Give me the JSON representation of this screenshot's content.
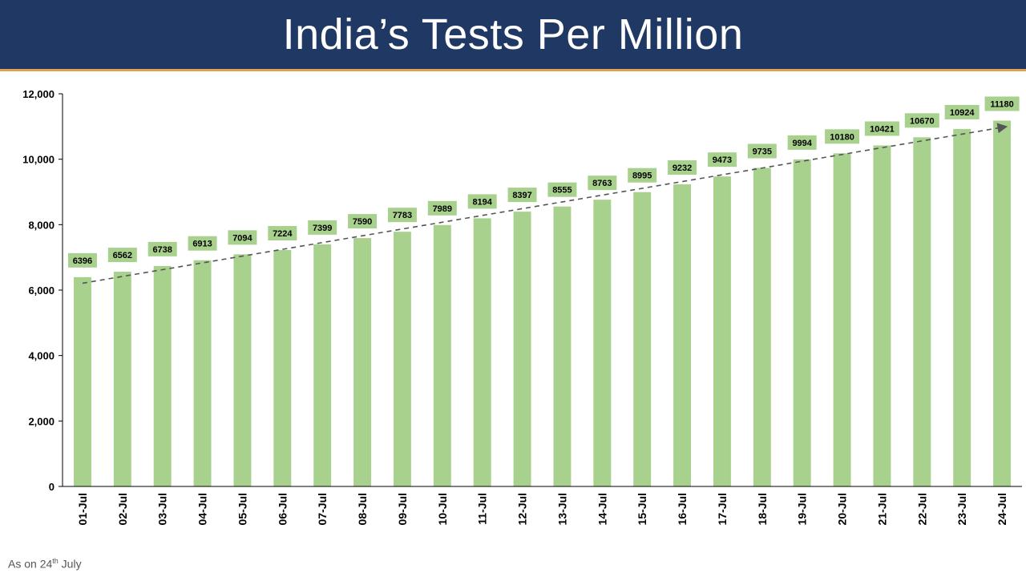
{
  "header": {
    "title": "India’s Tests Per Million"
  },
  "footnote": {
    "prefix": "As on 24",
    "sup": "th",
    "suffix": " July"
  },
  "colors": {
    "header_bg": "#1f3864",
    "bar": "#a9d18e",
    "label_bg": "#a9d18e",
    "trendline": "#555555"
  },
  "chart_data": {
    "type": "bar",
    "title": "India’s Tests Per Million",
    "xlabel": "",
    "ylabel": "",
    "categories": [
      "01-Jul",
      "02-Jul",
      "03-Jul",
      "04-Jul",
      "05-Jul",
      "06-Jul",
      "07-Jul",
      "08-Jul",
      "09-Jul",
      "10-Jul",
      "11-Jul",
      "12-Jul",
      "13-Jul",
      "14-Jul",
      "15-Jul",
      "16-Jul",
      "17-Jul",
      "18-Jul",
      "19-Jul",
      "20-Jul",
      "21-Jul",
      "22-Jul",
      "23-Jul",
      "24-Jul"
    ],
    "values": [
      6396,
      6562,
      6738,
      6913,
      7094,
      7224,
      7399,
      7590,
      7783,
      7989,
      8194,
      8397,
      8555,
      8763,
      8995,
      9232,
      9473,
      9735,
      9994,
      10180,
      10421,
      10670,
      10924,
      11180
    ],
    "ylim": [
      0,
      12000
    ],
    "yticks": [
      0,
      2000,
      4000,
      6000,
      8000,
      10000,
      12000
    ],
    "ytick_labels": [
      "0",
      "2,000",
      "4,000",
      "6,000",
      "8,000",
      "10,000",
      "12,000"
    ],
    "trendline": "linear",
    "grid": false,
    "legend": "none"
  }
}
